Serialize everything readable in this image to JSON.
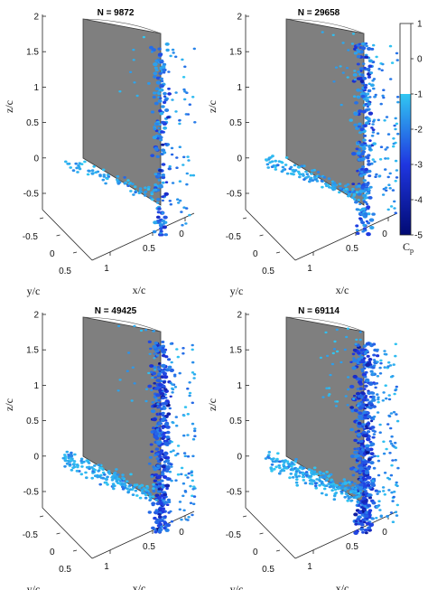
{
  "colors": {
    "plate": "#7f7f7f",
    "plate_edge": "#3a3a3a",
    "axis": "#222222",
    "point_light": "#29b6f6",
    "point_dark": "#0d1ca8"
  },
  "chart_data": {
    "type": "scatter",
    "colorbar": {
      "label_main": "C",
      "label_sub": "p",
      "ticks": [
        1,
        0,
        -1,
        -2,
        -3,
        -4,
        -5
      ],
      "range": [
        -5,
        1
      ],
      "map": [
        {
          "value": 1,
          "color": "#ffffff"
        },
        {
          "value": -1,
          "color": "#ffffff"
        },
        {
          "value": -1,
          "color": "#31c7f2"
        },
        {
          "value": -3,
          "color": "#1f36e0"
        },
        {
          "value": -5,
          "color": "#010a73"
        }
      ]
    },
    "panels": [
      {
        "title": "N = 9872",
        "n": 9872,
        "density": 1,
        "xlabel": "x/c",
        "ylabel": "y/c",
        "zlabel": "z/c",
        "xticks": [
          "1",
          "0.5",
          "0"
        ],
        "yticks": [
          "-0.5",
          "0",
          "0.5"
        ],
        "zticks": [
          "-0.5",
          "0",
          "0.5",
          "1",
          "1.5",
          "2"
        ]
      },
      {
        "title": "N = 29658",
        "n": 29658,
        "density": 2,
        "xlabel": "x/c",
        "ylabel": "y/c",
        "zlabel": "z/c",
        "xticks": [
          "1",
          "0.5",
          "0"
        ],
        "yticks": [
          "-0.5",
          "0",
          "0.5"
        ],
        "zticks": [
          "-0.5",
          "0",
          "0.5",
          "1",
          "1.5",
          "2"
        ]
      },
      {
        "title": "N = 49425",
        "n": 49425,
        "density": 3,
        "xlabel": "x/c",
        "ylabel": "y/c",
        "zlabel": "z/c",
        "xticks": [
          "1",
          "0.5",
          "0"
        ],
        "yticks": [
          "-0.5",
          "0",
          "0.5"
        ],
        "zticks": [
          "-0.5",
          "0",
          "0.5",
          "1",
          "1.5",
          "2"
        ]
      },
      {
        "title": "N = 69114",
        "n": 69114,
        "density": 4,
        "xlabel": "x/c",
        "ylabel": "y/c",
        "zlabel": "z/c",
        "xticks": [
          "1",
          "0.5",
          "0"
        ],
        "yticks": [
          "-0.5",
          "0",
          "0.5"
        ],
        "zticks": [
          "-0.5",
          "0",
          "0.5",
          "1",
          "1.5",
          "2"
        ]
      }
    ]
  }
}
